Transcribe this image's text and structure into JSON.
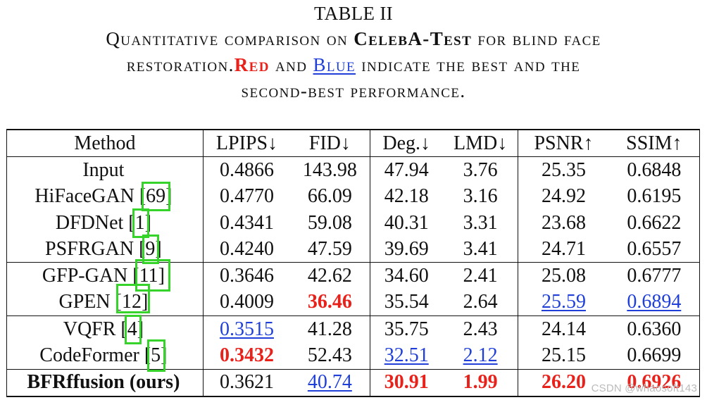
{
  "caption": {
    "title": "TABLE II",
    "line1_pre": "Quantitative comparison on ",
    "line1_bold": "CelebA-Test",
    "line1_post": " for blind face",
    "line2_pre": "restoration.",
    "red_word": "Red",
    "and_word": " and ",
    "blue_word": "Blue",
    "line2_post": " indicate the best and the",
    "line3": "second-best performance."
  },
  "table": {
    "headers": [
      "Method",
      "LPIPS↓",
      "FID↓",
      "Deg.↓",
      "LMD↓",
      "PSNR↑",
      "SSIM↑"
    ],
    "rows": [
      {
        "method": "Input",
        "ref": "",
        "values": [
          "0.4866",
          "143.98",
          "47.94",
          "3.76",
          "25.35",
          "0.6848"
        ],
        "styles": [
          "",
          "",
          "",
          "",
          "",
          ""
        ]
      },
      {
        "method": "HiFaceGAN [",
        "ref": "69",
        "values": [
          "0.4770",
          "66.09",
          "42.18",
          "3.16",
          "24.92",
          "0.6195"
        ],
        "styles": [
          "",
          "",
          "",
          "",
          "",
          ""
        ]
      },
      {
        "method": "DFDNet [",
        "ref": "1",
        "values": [
          "0.4341",
          "59.08",
          "40.31",
          "3.31",
          "23.68",
          "0.6622"
        ],
        "styles": [
          "",
          "",
          "",
          "",
          "",
          ""
        ]
      },
      {
        "method": "PSFRGAN [",
        "ref": "9",
        "values": [
          "0.4240",
          "47.59",
          "39.69",
          "3.41",
          "24.71",
          "0.6557"
        ],
        "styles": [
          "",
          "",
          "",
          "",
          "",
          ""
        ]
      },
      {
        "method": "GFP-GAN [",
        "ref": "11",
        "values": [
          "0.3646",
          "42.62",
          "34.60",
          "2.41",
          "25.08",
          "0.6777"
        ],
        "styles": [
          "",
          "",
          "",
          "",
          "",
          ""
        ]
      },
      {
        "method": "GPEN [",
        "ref": "12",
        "values": [
          "0.4009",
          "36.46",
          "35.54",
          "2.64",
          "25.59",
          "0.6894"
        ],
        "styles": [
          "",
          "red",
          "",
          "",
          "blue",
          "blue"
        ]
      },
      {
        "method": "VQFR [",
        "ref": "4",
        "values": [
          "0.3515",
          "41.28",
          "35.75",
          "2.43",
          "24.14",
          "0.6360"
        ],
        "styles": [
          "blue",
          "",
          "",
          "",
          "",
          ""
        ]
      },
      {
        "method": "CodeFormer [",
        "ref": "5",
        "values": [
          "0.3432",
          "52.43",
          "32.51",
          "2.12",
          "25.15",
          "0.6699"
        ],
        "styles": [
          "red",
          "",
          "blue",
          "blue",
          "",
          ""
        ]
      },
      {
        "method": "BFRffusion (ours)",
        "ref": "",
        "values": [
          "0.3621",
          "40.74",
          "30.91",
          "1.99",
          "26.20",
          "0.6926"
        ],
        "styles": [
          "",
          "blue",
          "red",
          "red",
          "red",
          "red"
        ]
      }
    ]
  },
  "colors": {
    "best": "#e8211b",
    "second": "#1f3fd8",
    "highlight_box": "#36d32a"
  },
  "watermark": "CSDN @whaosoft143"
}
